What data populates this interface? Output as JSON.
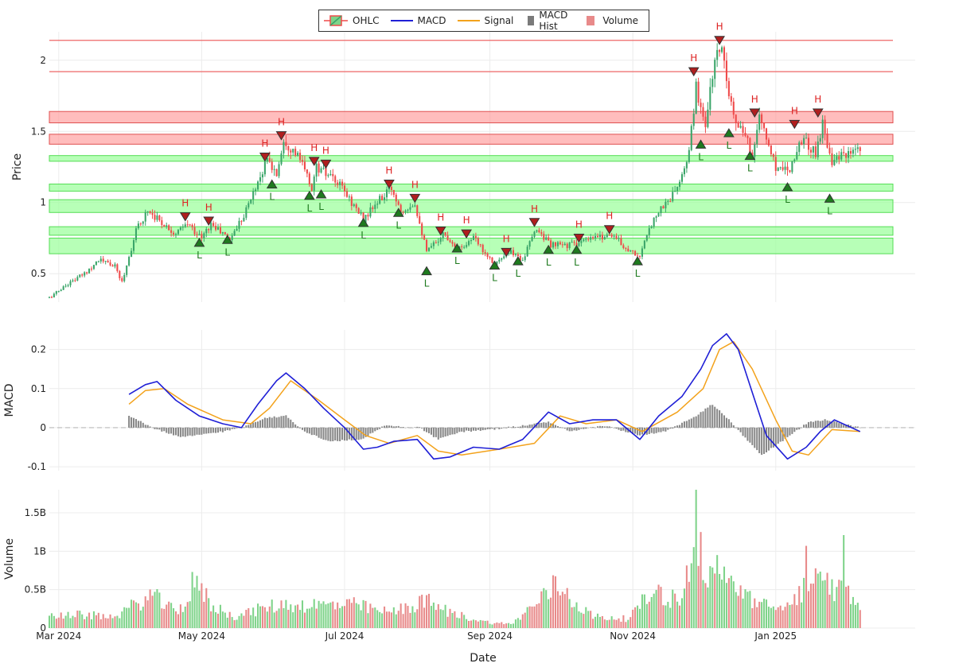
{
  "legend": {
    "ohlc": "OHLC",
    "macd": "MACD",
    "signal": "Signal",
    "hist": "MACD Hist",
    "volume": "Volume"
  },
  "colors": {
    "up": "#3aa569",
    "down": "#ef4a4a",
    "macd": "#1f1fd6",
    "signal": "#f3a21b",
    "hist": "#888888",
    "vol_up": "#7fd38a",
    "vol_down": "#e88a8a",
    "res_zone": "#ff9999",
    "sup_zone": "#99ff99"
  },
  "chart_data": {
    "type": "candlestick",
    "xlabel": "Date",
    "x_ticks": [
      "Mar 2024",
      "May 2024",
      "Jul 2024",
      "Sep 2024",
      "Nov 2024",
      "Jan 2025"
    ],
    "x_range": [
      "2024-02-26",
      "2025-02-20"
    ],
    "price_panel": {
      "ylabel": "Price",
      "ylim": [
        0.3,
        2.2
      ],
      "y_ticks": [
        0.5,
        1,
        1.5,
        2
      ],
      "resistance_lines": [
        2.14,
        1.92
      ],
      "resistance_zones": [
        [
          1.56,
          1.64
        ],
        [
          1.41,
          1.48
        ]
      ],
      "support_zones": [
        [
          1.29,
          1.33
        ],
        [
          1.08,
          1.13
        ],
        [
          0.93,
          1.02
        ],
        [
          0.77,
          0.83
        ],
        [
          0.64,
          0.75
        ]
      ],
      "highs": [
        {
          "date": "2024-04-24",
          "price": 0.9
        },
        {
          "date": "2024-05-04",
          "price": 0.87
        },
        {
          "date": "2024-05-28",
          "price": 1.32
        },
        {
          "date": "2024-06-04",
          "price": 1.47
        },
        {
          "date": "2024-06-18",
          "price": 1.29
        },
        {
          "date": "2024-06-23",
          "price": 1.27
        },
        {
          "date": "2024-07-20",
          "price": 1.13
        },
        {
          "date": "2024-07-31",
          "price": 1.03
        },
        {
          "date": "2024-08-11",
          "price": 0.8
        },
        {
          "date": "2024-08-22",
          "price": 0.78
        },
        {
          "date": "2024-09-08",
          "price": 0.65
        },
        {
          "date": "2024-09-20",
          "price": 0.86
        },
        {
          "date": "2024-10-09",
          "price": 0.75
        },
        {
          "date": "2024-10-22",
          "price": 0.81
        },
        {
          "date": "2024-11-27",
          "price": 1.92
        },
        {
          "date": "2024-12-08",
          "price": 2.14
        },
        {
          "date": "2024-12-23",
          "price": 1.63
        },
        {
          "date": "2025-01-09",
          "price": 1.55
        },
        {
          "date": "2025-01-19",
          "price": 1.63
        }
      ],
      "lows": [
        {
          "date": "2024-04-30",
          "price": 0.72
        },
        {
          "date": "2024-05-12",
          "price": 0.74
        },
        {
          "date": "2024-05-31",
          "price": 1.13
        },
        {
          "date": "2024-06-16",
          "price": 1.05
        },
        {
          "date": "2024-06-21",
          "price": 1.06
        },
        {
          "date": "2024-07-09",
          "price": 0.86
        },
        {
          "date": "2024-07-24",
          "price": 0.93
        },
        {
          "date": "2024-08-05",
          "price": 0.52
        },
        {
          "date": "2024-08-18",
          "price": 0.68
        },
        {
          "date": "2024-09-03",
          "price": 0.56
        },
        {
          "date": "2024-09-13",
          "price": 0.59
        },
        {
          "date": "2024-09-26",
          "price": 0.67
        },
        {
          "date": "2024-10-08",
          "price": 0.67
        },
        {
          "date": "2024-11-03",
          "price": 0.59
        },
        {
          "date": "2024-11-30",
          "price": 1.41
        },
        {
          "date": "2024-12-12",
          "price": 1.49
        },
        {
          "date": "2024-12-21",
          "price": 1.33
        },
        {
          "date": "2025-01-06",
          "price": 1.11
        },
        {
          "date": "2025-01-24",
          "price": 1.03
        }
      ],
      "hl_labels": {
        "high": "H",
        "low": "L"
      },
      "close_path": [
        [
          "2024-02-26",
          0.33
        ],
        [
          "2024-03-05",
          0.43
        ],
        [
          "2024-03-12",
          0.5
        ],
        [
          "2024-03-18",
          0.6
        ],
        [
          "2024-03-25",
          0.55
        ],
        [
          "2024-03-28",
          0.44
        ],
        [
          "2024-04-03",
          0.8
        ],
        [
          "2024-04-08",
          0.95
        ],
        [
          "2024-04-14",
          0.86
        ],
        [
          "2024-04-20",
          0.78
        ],
        [
          "2024-04-25",
          0.85
        ],
        [
          "2024-05-01",
          0.75
        ],
        [
          "2024-05-05",
          0.85
        ],
        [
          "2024-05-13",
          0.74
        ],
        [
          "2024-05-20",
          0.95
        ],
        [
          "2024-05-25",
          1.15
        ],
        [
          "2024-05-29",
          1.3
        ],
        [
          "2024-06-02",
          1.2
        ],
        [
          "2024-06-05",
          1.45
        ],
        [
          "2024-06-12",
          1.3
        ],
        [
          "2024-06-17",
          1.1
        ],
        [
          "2024-06-19",
          1.25
        ],
        [
          "2024-06-23",
          1.2
        ],
        [
          "2024-06-30",
          1.1
        ],
        [
          "2024-07-09",
          0.88
        ],
        [
          "2024-07-15",
          1.0
        ],
        [
          "2024-07-21",
          1.1
        ],
        [
          "2024-07-25",
          0.95
        ],
        [
          "2024-07-31",
          1.0
        ],
        [
          "2024-08-05",
          0.65
        ],
        [
          "2024-08-12",
          0.78
        ],
        [
          "2024-08-19",
          0.68
        ],
        [
          "2024-08-25",
          0.75
        ],
        [
          "2024-09-03",
          0.57
        ],
        [
          "2024-09-10",
          0.65
        ],
        [
          "2024-09-15",
          0.6
        ],
        [
          "2024-09-21",
          0.82
        ],
        [
          "2024-09-27",
          0.7
        ],
        [
          "2024-10-04",
          0.7
        ],
        [
          "2024-10-10",
          0.72
        ],
        [
          "2024-10-16",
          0.75
        ],
        [
          "2024-10-23",
          0.78
        ],
        [
          "2024-10-29",
          0.68
        ],
        [
          "2024-11-04",
          0.62
        ],
        [
          "2024-11-10",
          0.9
        ],
        [
          "2024-11-18",
          1.05
        ],
        [
          "2024-11-24",
          1.25
        ],
        [
          "2024-11-28",
          1.8
        ],
        [
          "2024-12-02",
          1.55
        ],
        [
          "2024-12-06",
          2.0
        ],
        [
          "2024-12-09",
          2.1
        ],
        [
          "2024-12-14",
          1.6
        ],
        [
          "2024-12-22",
          1.35
        ],
        [
          "2024-12-25",
          1.6
        ],
        [
          "2025-01-01",
          1.25
        ],
        [
          "2025-01-07",
          1.25
        ],
        [
          "2025-01-12",
          1.45
        ],
        [
          "2025-01-18",
          1.35
        ],
        [
          "2025-01-21",
          1.55
        ],
        [
          "2025-01-25",
          1.3
        ],
        [
          "2025-02-05",
          1.35
        ]
      ]
    },
    "macd_panel": {
      "ylabel": "MACD",
      "ylim": [
        -0.11,
        0.25
      ],
      "y_ticks": [
        -0.1,
        0,
        0.1,
        0.2
      ],
      "macd": [
        [
          "2024-03-31",
          0.085
        ],
        [
          "2024-04-07",
          0.11
        ],
        [
          "2024-04-12",
          0.118
        ],
        [
          "2024-04-20",
          0.07
        ],
        [
          "2024-04-30",
          0.03
        ],
        [
          "2024-05-10",
          0.01
        ],
        [
          "2024-05-18",
          0.0
        ],
        [
          "2024-05-25",
          0.06
        ],
        [
          "2024-06-02",
          0.12
        ],
        [
          "2024-06-06",
          0.14
        ],
        [
          "2024-06-14",
          0.1
        ],
        [
          "2024-06-22",
          0.05
        ],
        [
          "2024-07-01",
          0.0
        ],
        [
          "2024-07-09",
          -0.055
        ],
        [
          "2024-07-15",
          -0.05
        ],
        [
          "2024-07-22",
          -0.035
        ],
        [
          "2024-08-01",
          -0.03
        ],
        [
          "2024-08-08",
          -0.08
        ],
        [
          "2024-08-15",
          -0.075
        ],
        [
          "2024-08-25",
          -0.05
        ],
        [
          "2024-09-05",
          -0.055
        ],
        [
          "2024-09-15",
          -0.03
        ],
        [
          "2024-09-26",
          0.04
        ],
        [
          "2024-10-05",
          0.01
        ],
        [
          "2024-10-15",
          0.02
        ],
        [
          "2024-10-25",
          0.02
        ],
        [
          "2024-11-04",
          -0.03
        ],
        [
          "2024-11-12",
          0.03
        ],
        [
          "2024-11-22",
          0.08
        ],
        [
          "2024-11-30",
          0.15
        ],
        [
          "2024-12-05",
          0.21
        ],
        [
          "2024-12-11",
          0.24
        ],
        [
          "2024-12-16",
          0.2
        ],
        [
          "2024-12-22",
          0.09
        ],
        [
          "2024-12-28",
          -0.02
        ],
        [
          "2025-01-06",
          -0.08
        ],
        [
          "2025-01-14",
          -0.05
        ],
        [
          "2025-01-20",
          -0.01
        ],
        [
          "2025-01-26",
          0.02
        ],
        [
          "2025-02-06",
          -0.01
        ]
      ],
      "signal": [
        [
          "2024-03-31",
          0.06
        ],
        [
          "2024-04-07",
          0.095
        ],
        [
          "2024-04-15",
          0.1
        ],
        [
          "2024-04-25",
          0.06
        ],
        [
          "2024-05-10",
          0.02
        ],
        [
          "2024-05-22",
          0.01
        ],
        [
          "2024-05-30",
          0.05
        ],
        [
          "2024-06-08",
          0.12
        ],
        [
          "2024-06-20",
          0.07
        ],
        [
          "2024-07-01",
          0.02
        ],
        [
          "2024-07-10",
          -0.02
        ],
        [
          "2024-07-20",
          -0.04
        ],
        [
          "2024-08-01",
          -0.02
        ],
        [
          "2024-08-10",
          -0.06
        ],
        [
          "2024-08-20",
          -0.07
        ],
        [
          "2024-09-05",
          -0.055
        ],
        [
          "2024-09-20",
          -0.04
        ],
        [
          "2024-10-01",
          0.03
        ],
        [
          "2024-10-12",
          0.01
        ],
        [
          "2024-10-25",
          0.02
        ],
        [
          "2024-11-05",
          -0.01
        ],
        [
          "2024-11-20",
          0.04
        ],
        [
          "2024-12-01",
          0.1
        ],
        [
          "2024-12-08",
          0.2
        ],
        [
          "2024-12-14",
          0.22
        ],
        [
          "2024-12-22",
          0.15
        ],
        [
          "2025-01-01",
          0.02
        ],
        [
          "2025-01-08",
          -0.06
        ],
        [
          "2025-01-15",
          -0.07
        ],
        [
          "2025-01-25",
          -0.005
        ],
        [
          "2025-02-06",
          -0.01
        ]
      ],
      "hist": [
        [
          "2024-03-31",
          0.03
        ],
        [
          "2024-04-10",
          0.0
        ],
        [
          "2024-04-22",
          -0.025
        ],
        [
          "2024-05-10",
          -0.01
        ],
        [
          "2024-05-18",
          0.0
        ],
        [
          "2024-05-28",
          0.025
        ],
        [
          "2024-06-06",
          0.03
        ],
        [
          "2024-06-14",
          -0.01
        ],
        [
          "2024-06-24",
          -0.035
        ],
        [
          "2024-07-08",
          -0.03
        ],
        [
          "2024-07-18",
          0.005
        ],
        [
          "2024-08-02",
          0.0
        ],
        [
          "2024-08-10",
          -0.03
        ],
        [
          "2024-08-20",
          -0.01
        ],
        [
          "2024-09-01",
          -0.005
        ],
        [
          "2024-09-15",
          0.005
        ],
        [
          "2024-09-26",
          0.015
        ],
        [
          "2024-10-05",
          -0.01
        ],
        [
          "2024-10-20",
          0.005
        ],
        [
          "2024-11-04",
          -0.02
        ],
        [
          "2024-11-15",
          -0.01
        ],
        [
          "2024-11-28",
          0.03
        ],
        [
          "2024-12-05",
          0.06
        ],
        [
          "2024-12-12",
          0.02
        ],
        [
          "2024-12-18",
          -0.02
        ],
        [
          "2024-12-26",
          -0.07
        ],
        [
          "2025-01-05",
          -0.03
        ],
        [
          "2025-01-15",
          0.015
        ],
        [
          "2025-01-22",
          0.02
        ],
        [
          "2025-02-06",
          0.0
        ]
      ]
    },
    "volume_panel": {
      "ylabel": "Volume",
      "ylim": [
        0,
        1.8
      ],
      "y_ticks": [
        0,
        0.5,
        1,
        1.5
      ],
      "y_tick_labels": [
        "0",
        "0.5B",
        "1B",
        "1.5B"
      ],
      "volume_path": [
        [
          "2024-02-26",
          0.18
        ],
        [
          "2024-03-10",
          0.17
        ],
        [
          "2024-03-25",
          0.15
        ],
        [
          "2024-04-05",
          0.35
        ],
        [
          "2024-04-10",
          0.42
        ],
        [
          "2024-04-20",
          0.2
        ],
        [
          "2024-04-30",
          0.55
        ],
        [
          "2024-05-05",
          0.3
        ],
        [
          "2024-05-15",
          0.15
        ],
        [
          "2024-05-30",
          0.28
        ],
        [
          "2024-06-05",
          0.3
        ],
        [
          "2024-06-20",
          0.3
        ],
        [
          "2024-07-05",
          0.3
        ],
        [
          "2024-07-20",
          0.2
        ],
        [
          "2024-08-05",
          0.35
        ],
        [
          "2024-08-15",
          0.2
        ],
        [
          "2024-08-30",
          0.08
        ],
        [
          "2024-09-10",
          0.05
        ],
        [
          "2024-09-20",
          0.3
        ],
        [
          "2024-09-30",
          0.58
        ],
        [
          "2024-10-05",
          0.4
        ],
        [
          "2024-10-15",
          0.15
        ],
        [
          "2024-10-30",
          0.12
        ],
        [
          "2024-11-10",
          0.5
        ],
        [
          "2024-11-20",
          0.35
        ],
        [
          "2024-11-28",
          1.0
        ],
        [
          "2024-12-05",
          0.6
        ],
        [
          "2024-12-15",
          0.55
        ],
        [
          "2024-12-25",
          0.3
        ],
        [
          "2025-01-05",
          0.25
        ],
        [
          "2025-01-15",
          0.6
        ],
        [
          "2025-01-25",
          0.55
        ],
        [
          "2025-02-05",
          0.35
        ]
      ],
      "spikes": [
        [
          "2024-04-27",
          0.73
        ],
        [
          "2024-11-28",
          1.8
        ],
        [
          "2024-11-30",
          1.25
        ],
        [
          "2024-12-07",
          0.95
        ],
        [
          "2024-12-10",
          0.8
        ],
        [
          "2025-01-14",
          1.07
        ],
        [
          "2025-01-30",
          1.21
        ]
      ]
    }
  }
}
